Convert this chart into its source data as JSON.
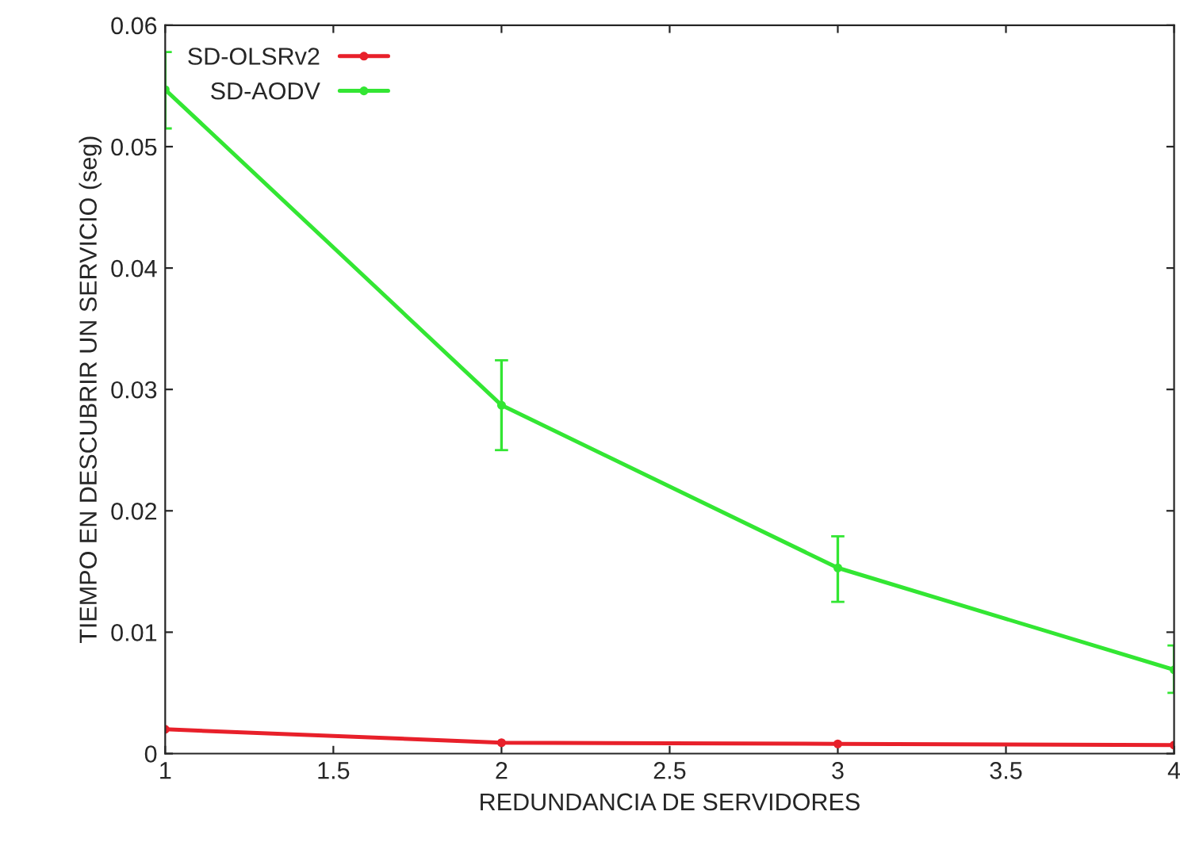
{
  "chart_data": {
    "type": "line",
    "xlabel": "REDUNDANCIA DE SERVIDORES",
    "ylabel": "TIEMPO EN DESCUBRIR UN SERVICIO (seg)",
    "x": [
      1,
      2,
      3,
      4
    ],
    "series": [
      {
        "name": "SD-OLSRv2",
        "color": "#e8202a",
        "values": [
          0.002,
          0.0009,
          0.0008,
          0.0007
        ]
      },
      {
        "name": "SD-AODV",
        "color": "#33e633",
        "values": [
          0.0547,
          0.0287,
          0.0153,
          0.0069
        ],
        "errors": [
          [
            0.0515,
            0.0578
          ],
          [
            0.025,
            0.0324
          ],
          [
            0.0125,
            0.0179
          ],
          [
            0.005,
            0.0089
          ]
        ]
      }
    ],
    "xlim": [
      1,
      4
    ],
    "ylim": [
      0,
      0.06
    ],
    "xticks": [
      1,
      1.5,
      2,
      2.5,
      3,
      3.5,
      4
    ],
    "yticks": [
      0,
      0.01,
      0.02,
      0.03,
      0.04,
      0.05,
      0.06
    ],
    "legend": "top left",
    "marker": "circle",
    "grid": false
  }
}
